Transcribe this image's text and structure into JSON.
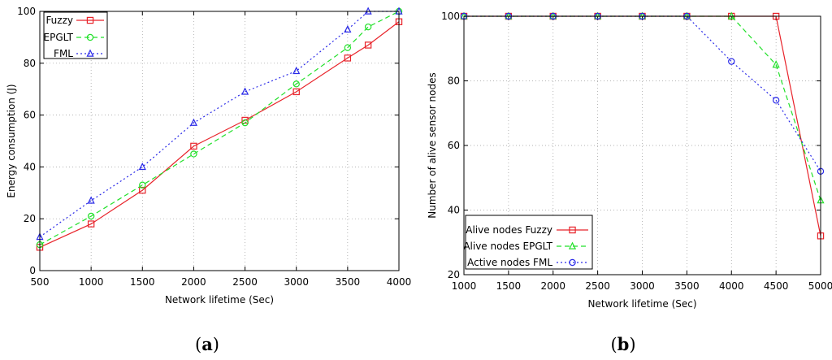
{
  "chart_data": [
    {
      "type": "line",
      "caption": [
        "(",
        "a",
        ")"
      ],
      "xlabel": "Network lifetime (Sec)",
      "ylabel": "Energy consumption (J)",
      "xlim": [
        500,
        4000
      ],
      "ylim": [
        0,
        100
      ],
      "xticks": [
        500,
        1000,
        1500,
        2000,
        2500,
        3000,
        3500,
        4000
      ],
      "yticks": [
        0,
        20,
        40,
        60,
        80,
        100
      ],
      "grid": true,
      "legend_position": "top-left",
      "series": [
        {
          "name": "Fuzzy",
          "color": "#e8232a",
          "dash": "",
          "marker": "square",
          "x": [
            500,
            1000,
            1500,
            2000,
            2500,
            3000,
            3500,
            3700,
            4000
          ],
          "y": [
            9,
            18,
            31,
            48,
            58,
            69,
            82,
            87,
            96
          ]
        },
        {
          "name": "EPGLT",
          "color": "#22e02a",
          "dash": "6,4",
          "marker": "circle",
          "x": [
            500,
            1000,
            1500,
            2000,
            2500,
            3000,
            3500,
            3700,
            4000
          ],
          "y": [
            10,
            21,
            33,
            45,
            57,
            72,
            86,
            94,
            100
          ]
        },
        {
          "name": "FML",
          "color": "#2a2ae8",
          "dash": "2,3",
          "marker": "triangle",
          "x": [
            500,
            1000,
            1500,
            2000,
            2500,
            3000,
            3500,
            3700,
            4000
          ],
          "y": [
            13,
            27,
            40,
            57,
            69,
            77,
            93,
            100,
            100
          ]
        }
      ]
    },
    {
      "type": "line",
      "caption": [
        "(",
        "b",
        ")"
      ],
      "xlabel": "Network lifetime (Sec)",
      "ylabel": "Number of alive sensor nodes",
      "xlim": [
        1000,
        5000
      ],
      "ylim": [
        20,
        100
      ],
      "xticks": [
        1000,
        1500,
        2000,
        2500,
        3000,
        3500,
        4000,
        4500,
        5000
      ],
      "yticks": [
        20,
        40,
        60,
        80,
        100
      ],
      "grid": true,
      "legend_position": "bottom-left",
      "series": [
        {
          "name": "Alive nodes Fuzzy",
          "color": "#e8232a",
          "dash": "",
          "marker": "square",
          "x": [
            1000,
            1500,
            2000,
            2500,
            3000,
            3500,
            4000,
            4500,
            5000
          ],
          "y": [
            100,
            100,
            100,
            100,
            100,
            100,
            100,
            100,
            32
          ]
        },
        {
          "name": "Alive nodes EPGLT",
          "color": "#22e02a",
          "dash": "6,4",
          "marker": "triangle",
          "x": [
            1000,
            1500,
            2000,
            2500,
            3000,
            3500,
            4000,
            4500,
            5000
          ],
          "y": [
            100,
            100,
            100,
            100,
            100,
            100,
            100,
            85,
            43
          ]
        },
        {
          "name": "Active nodes FML",
          "color": "#2a2ae8",
          "dash": "2,3",
          "marker": "circle",
          "x": [
            1000,
            1500,
            2000,
            2500,
            3000,
            3500,
            4000,
            4500,
            5000
          ],
          "y": [
            100,
            100,
            100,
            100,
            100,
            100,
            86,
            74,
            52
          ]
        }
      ]
    }
  ]
}
